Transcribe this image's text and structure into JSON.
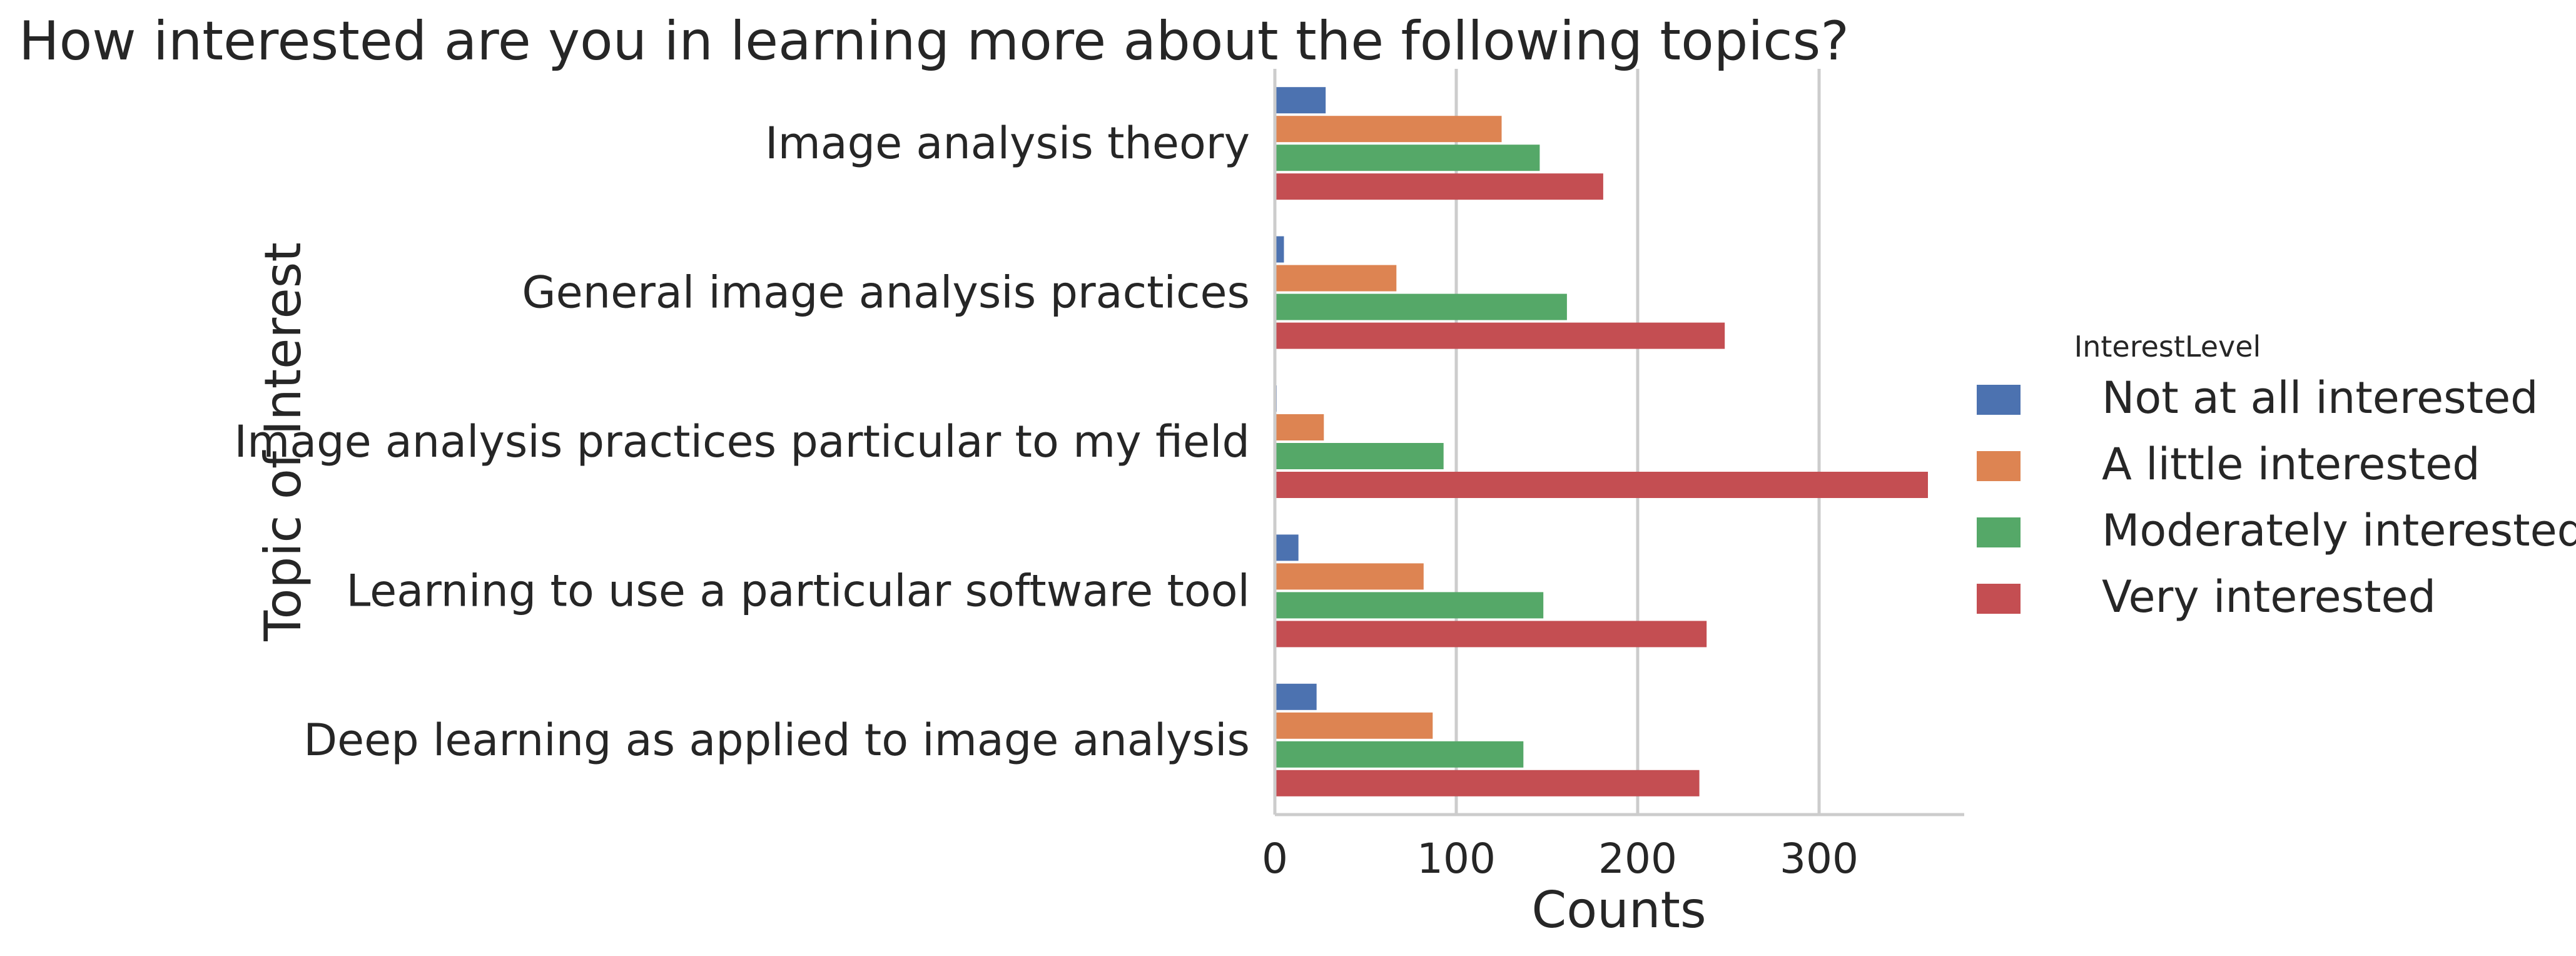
{
  "chart_data": {
    "type": "bar",
    "orientation": "horizontal",
    "title": "How interested are you in learning more about the following topics?",
    "xlabel": "Counts",
    "ylabel": "Topic of Interest",
    "xlim": [
      0,
      380
    ],
    "xticks": [
      0,
      100,
      200,
      300
    ],
    "grid": "vertical",
    "categories": [
      "Image analysis theory",
      "General image analysis practices",
      "Image analysis practices particular to my field",
      "Learning to use a particular software tool",
      "Deep learning as applied to image analysis"
    ],
    "legend": {
      "title": "InterestLevel",
      "placement": "right"
    },
    "series": [
      {
        "name": "Not at all interested",
        "color": "#4c72b0",
        "values": [
          28,
          5,
          1,
          13,
          23
        ]
      },
      {
        "name": "A little interested",
        "color": "#dd8452",
        "values": [
          125,
          67,
          27,
          82,
          87
        ]
      },
      {
        "name": "Moderately interested",
        "color": "#55a868",
        "values": [
          146,
          161,
          93,
          148,
          137
        ]
      },
      {
        "name": "Very interested",
        "color": "#c44e52",
        "values": [
          181,
          248,
          360,
          238,
          234
        ]
      }
    ]
  }
}
